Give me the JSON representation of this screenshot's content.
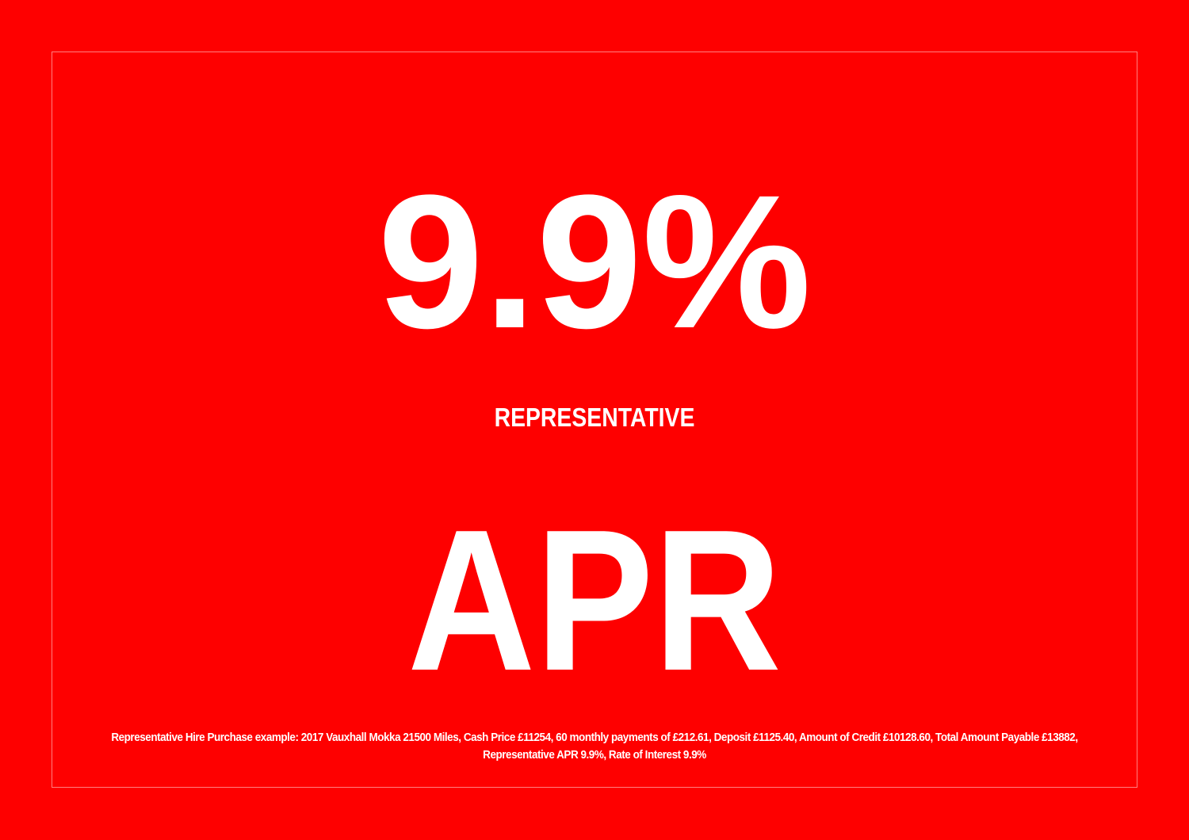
{
  "rate": "9.9%",
  "representative": "REPRESENTATIVE",
  "apr": "APR",
  "footnote": "Representative Hire Purchase example: 2017 Vauxhall Mokka 21500 Miles, Cash Price £11254, 60 monthly payments of £212.61, Deposit £1125.40, Amount of Credit £10128.60, Total Amount Payable £13882, Representative APR 9.9%, Rate of Interest 9.9%",
  "colors": {
    "background": "#fe0000",
    "text": "#ffffff"
  }
}
